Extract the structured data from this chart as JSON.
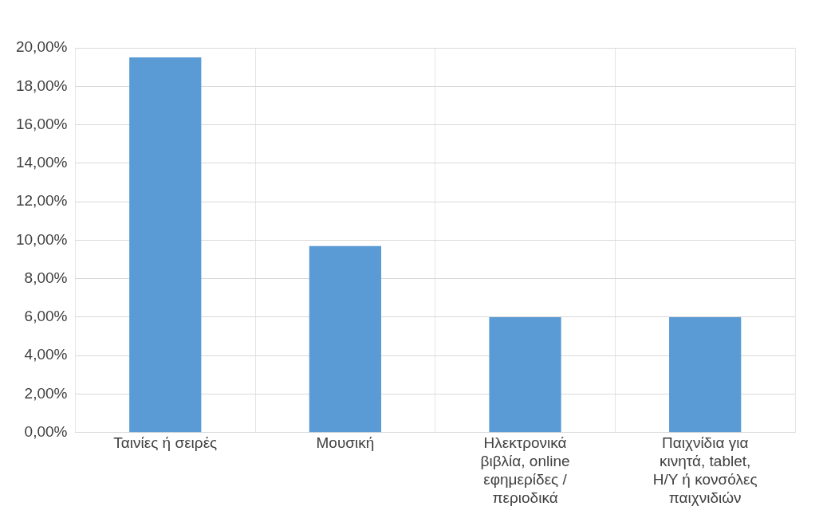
{
  "chart_data": {
    "type": "bar",
    "categories": [
      "Ταινίες ή σειρές",
      "Μουσική",
      "Ηλεκτρονικά βιβλία, online εφημερίδες / περιοδικά",
      "Παιχνίδια για κινητά, tablet, Η/Υ ή κονσόλες παιχνιδιών"
    ],
    "values": [
      19.5,
      9.7,
      6.0,
      6.0
    ],
    "color": "#5b9bd5",
    "ylim": [
      0,
      20
    ],
    "yticks": [
      {
        "value": 0,
        "label": "0,00%"
      },
      {
        "value": 2,
        "label": "2,00%"
      },
      {
        "value": 4,
        "label": "4,00%"
      },
      {
        "value": 6,
        "label": "6,00%"
      },
      {
        "value": 8,
        "label": "8,00%"
      },
      {
        "value": 10,
        "label": "10,00%"
      },
      {
        "value": 12,
        "label": "12,00%"
      },
      {
        "value": 14,
        "label": "14,00%"
      },
      {
        "value": 16,
        "label": "16,00%"
      },
      {
        "value": 18,
        "label": "18,00%"
      },
      {
        "value": 20,
        "label": "20,00%"
      }
    ],
    "grid": true
  }
}
